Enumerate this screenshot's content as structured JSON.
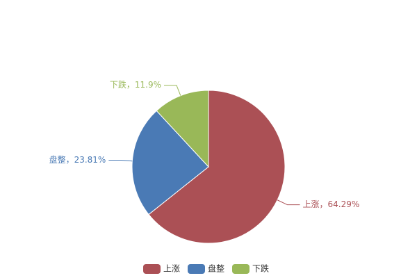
{
  "chart_data": {
    "type": "pie",
    "categories": [
      "上涨",
      "盘整",
      "下跌"
    ],
    "values": [
      64.29,
      23.81,
      11.9
    ],
    "value_labels": [
      "上涨，64.29%",
      "盘整，23.81%",
      "下跌，11.9%"
    ],
    "colors": [
      "#ab5055",
      "#4a7ab5",
      "#99b858"
    ],
    "legend": "bottom"
  }
}
